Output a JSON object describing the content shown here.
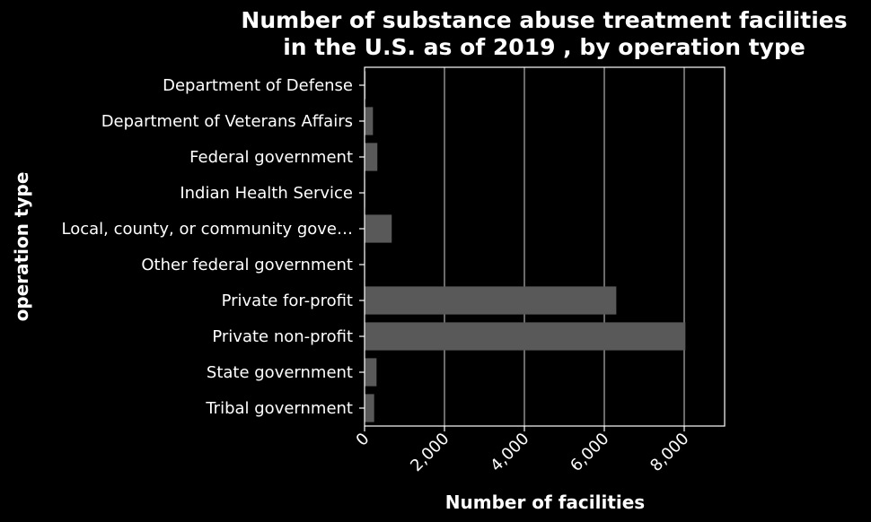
{
  "chart_data": {
    "type": "bar",
    "orientation": "horizontal",
    "title": "Number of substance abuse treatment facilities in the U.S. as of 2019 , by operation type",
    "title_lines": [
      "Number of substance abuse treatment facilities",
      "in the U.S. as of 2019 , by operation type"
    ],
    "xlabel": "Number of facilities",
    "ylabel": "operation type",
    "categories": [
      "Department of Defense",
      "Department of Veterans Affairs",
      "Federal government",
      "Indian Health Service",
      "Local, county, or community gove…",
      "Other federal government",
      "Private for-profit",
      "Private non-profit",
      "State government",
      "Tribal government"
    ],
    "values": [
      30,
      210,
      320,
      15,
      680,
      5,
      6300,
      8030,
      300,
      240
    ],
    "xlim": [
      0,
      9000
    ],
    "xticks": [
      0,
      2000,
      4000,
      6000,
      8000
    ],
    "xtick_labels": [
      "0",
      "2,000",
      "4,000",
      "6,000",
      "8,000"
    ],
    "grid": "vertical",
    "legend": "none",
    "colors": {
      "background": "#000000",
      "bar": "#595959",
      "grid": "#b0b0b0",
      "frame": "#ffffff",
      "text": "#ffffff"
    }
  }
}
